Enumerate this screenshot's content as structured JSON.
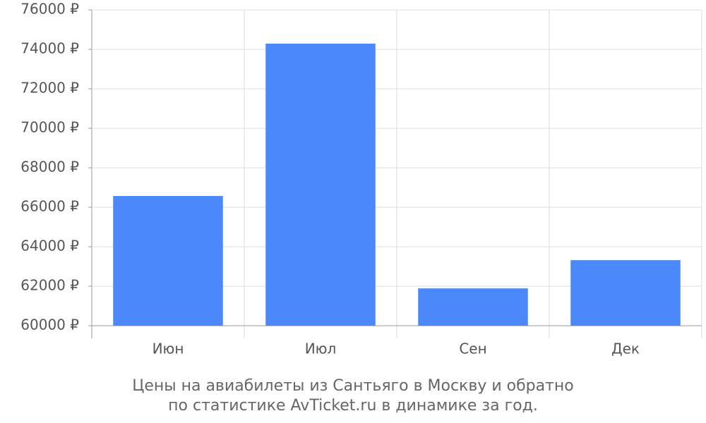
{
  "chart_data": {
    "type": "bar",
    "caption": [
      "Цены на авиабилеты из Сантьяго в Москву и обратно",
      "по статистике AvTicket.ru в динамике за год."
    ],
    "categories": [
      "Июн",
      "Июл",
      "Сен",
      "Дек"
    ],
    "values": [
      66570,
      74290,
      61890,
      63320
    ],
    "color": "#4b89fa",
    "ylim": [
      60000,
      76000
    ],
    "yticks": [
      {
        "value": 60000,
        "label": "60000 ₽"
      },
      {
        "value": 62000,
        "label": "62000 ₽"
      },
      {
        "value": 64000,
        "label": "64000 ₽"
      },
      {
        "value": 66000,
        "label": "66000 ₽"
      },
      {
        "value": 68000,
        "label": "68000 ₽"
      },
      {
        "value": 70000,
        "label": "70000 ₽"
      },
      {
        "value": 72000,
        "label": "72000 ₽"
      },
      {
        "value": 74000,
        "label": "74000 ₽"
      },
      {
        "value": 76000,
        "label": "76000 ₽"
      }
    ],
    "grid": true
  }
}
